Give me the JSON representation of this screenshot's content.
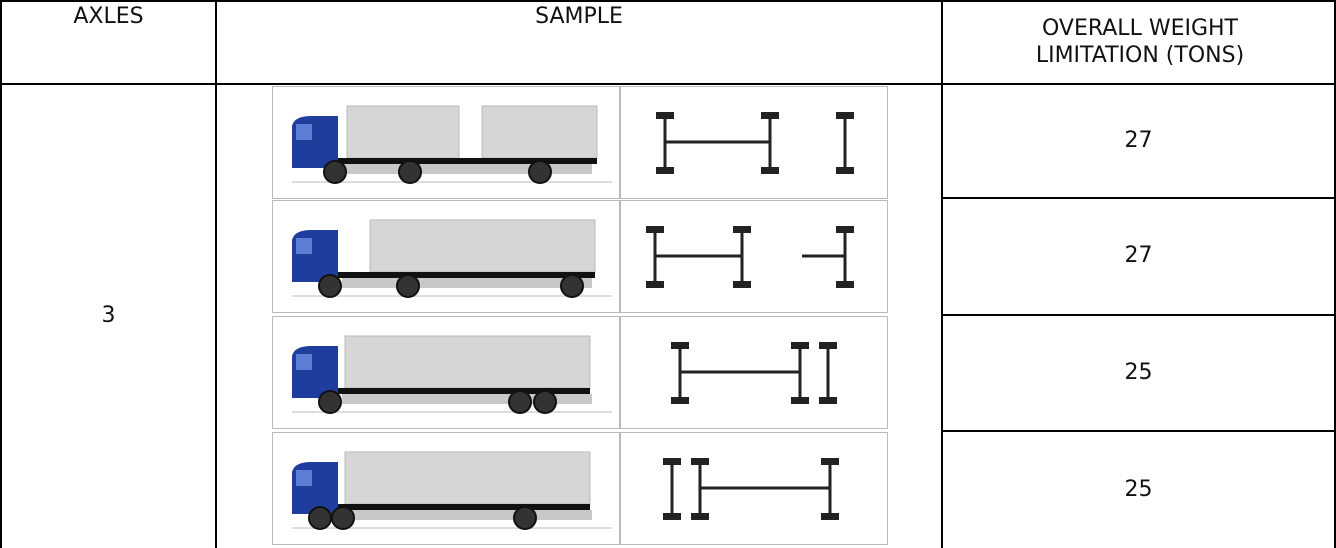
{
  "table": {
    "header": [
      "AXLES",
      "SAMPLE",
      "OVERALL WEIGHT LIMITATION (TONS)"
    ],
    "axles": "3",
    "rows": [
      {
        "weight": "27"
      },
      {
        "weight": "27"
      },
      {
        "weight": "25"
      },
      {
        "weight": "25"
      }
    ]
  }
}
